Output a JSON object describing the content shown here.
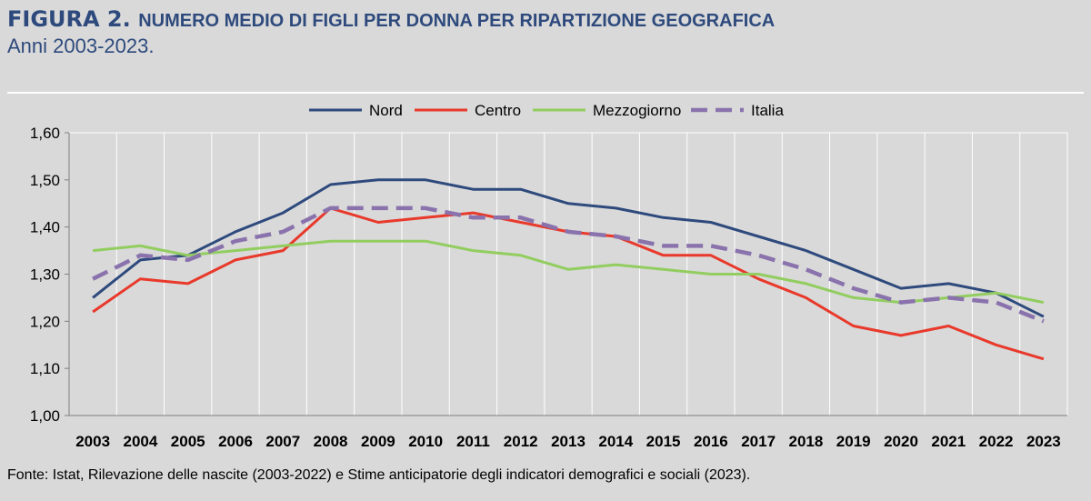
{
  "header": {
    "figure_label": "FIGURA 2.",
    "title": "NUMERO MEDIO DI FIGLI PER DONNA PER RIPARTIZIONE GEOGRAFICA",
    "subtitle": "Anni 2003-2023."
  },
  "footer": {
    "source": "Fonte: Istat, Rilevazione delle nascite (2003-2022) e Stime anticipatorie degli indicatori demografici e sociali (2023)."
  },
  "chart_data": {
    "type": "line",
    "title": "NUMERO MEDIO DI FIGLI PER DONNA PER RIPARTIZIONE GEOGRAFICA",
    "subtitle": "Anni 2003-2023.",
    "x": [
      "2003",
      "2004",
      "2005",
      "2006",
      "2007",
      "2008",
      "2009",
      "2010",
      "2011",
      "2012",
      "2013",
      "2014",
      "2015",
      "2016",
      "2017",
      "2018",
      "2019",
      "2020",
      "2021",
      "2022",
      "2023"
    ],
    "ylim": [
      1.0,
      1.6
    ],
    "yticks": [
      "1,00",
      "1,10",
      "1,20",
      "1,30",
      "1,40",
      "1,50",
      "1,60"
    ],
    "grid": "vertical",
    "legend_position": "top",
    "series": [
      {
        "name": "Nord",
        "color": "#2e4a7d",
        "style": "solid",
        "values": [
          1.25,
          1.33,
          1.34,
          1.39,
          1.43,
          1.49,
          1.5,
          1.5,
          1.48,
          1.48,
          1.45,
          1.44,
          1.42,
          1.41,
          1.38,
          1.35,
          1.31,
          1.27,
          1.28,
          1.26,
          1.21
        ]
      },
      {
        "name": "Centro",
        "color": "#e8392b",
        "style": "solid",
        "values": [
          1.22,
          1.29,
          1.28,
          1.33,
          1.35,
          1.44,
          1.41,
          1.42,
          1.43,
          1.41,
          1.39,
          1.38,
          1.34,
          1.34,
          1.29,
          1.25,
          1.19,
          1.17,
          1.19,
          1.15,
          1.12
        ]
      },
      {
        "name": "Mezzogiorno",
        "color": "#92cd5f",
        "style": "solid",
        "values": [
          1.35,
          1.36,
          1.34,
          1.35,
          1.36,
          1.37,
          1.37,
          1.37,
          1.35,
          1.34,
          1.31,
          1.32,
          1.31,
          1.3,
          1.3,
          1.28,
          1.25,
          1.24,
          1.25,
          1.26,
          1.24
        ]
      },
      {
        "name": "Italia",
        "color": "#8a73ad",
        "style": "dashed",
        "values": [
          1.29,
          1.34,
          1.33,
          1.37,
          1.39,
          1.44,
          1.44,
          1.44,
          1.42,
          1.42,
          1.39,
          1.38,
          1.36,
          1.36,
          1.34,
          1.31,
          1.27,
          1.24,
          1.25,
          1.24,
          1.2
        ]
      }
    ]
  }
}
